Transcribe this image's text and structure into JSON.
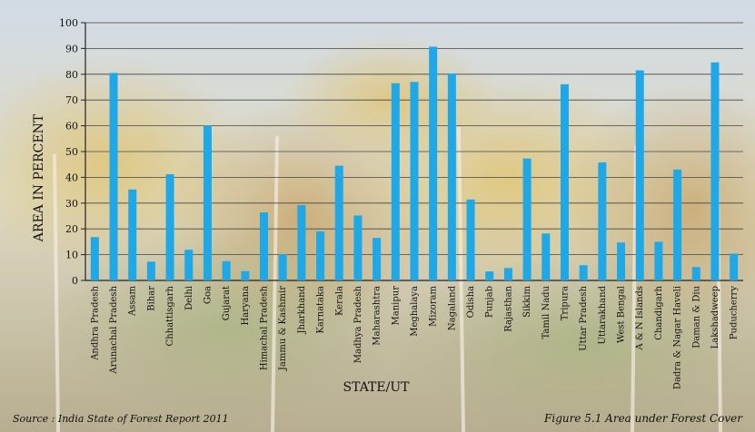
{
  "chart_data": {
    "type": "bar",
    "xlabel": "STATE/UT",
    "ylabel": "AREA IN PERCENT",
    "ylim": [
      0,
      100
    ],
    "yticks": [
      0,
      10,
      20,
      30,
      40,
      50,
      60,
      70,
      80,
      90,
      100
    ],
    "grid": true,
    "bar_color": "#1ea8e8",
    "categories": [
      "Andhra Pradesh",
      "Arunachal Pradesh",
      "Assam",
      "Bihar",
      "Chhattisgarh",
      "Delhi",
      "Goa",
      "Gujarat",
      "Haryana",
      "Himachal Pradesh",
      "Jammu & Kashmir",
      "Jharkhand",
      "Karnataka",
      "Kerala",
      "Madhya Pradesh",
      "Maharashtra",
      "Manipur",
      "Meghalaya",
      "Mizoram",
      "Nagaland",
      "Odisha",
      "Punjab",
      "Rajasthan",
      "Sikkim",
      "Tamil Nadu",
      "Tripura",
      "Uttar Pradesh",
      "Uttarakhand",
      "West Bengal",
      "A & N Islands",
      "Chandigarh",
      "Dadra & Nagar Haveli",
      "Daman & Diu",
      "Lakshadweep",
      "Puducherry"
    ],
    "values": [
      16.8,
      80.5,
      35.3,
      7.3,
      41.2,
      11.9,
      60,
      7.5,
      3.6,
      26.4,
      10.1,
      29.2,
      19,
      44.5,
      25.2,
      16.5,
      76.5,
      77,
      90.7,
      80.3,
      31.4,
      3.5,
      4.8,
      47.3,
      18.2,
      76.1,
      5.9,
      45.8,
      14.7,
      81.5,
      15,
      43,
      5.2,
      84.6,
      10.4
    ]
  },
  "source": "Source : India State of Forest Report 2011",
  "caption": "Figure 5.1 Area under Forest Cover"
}
